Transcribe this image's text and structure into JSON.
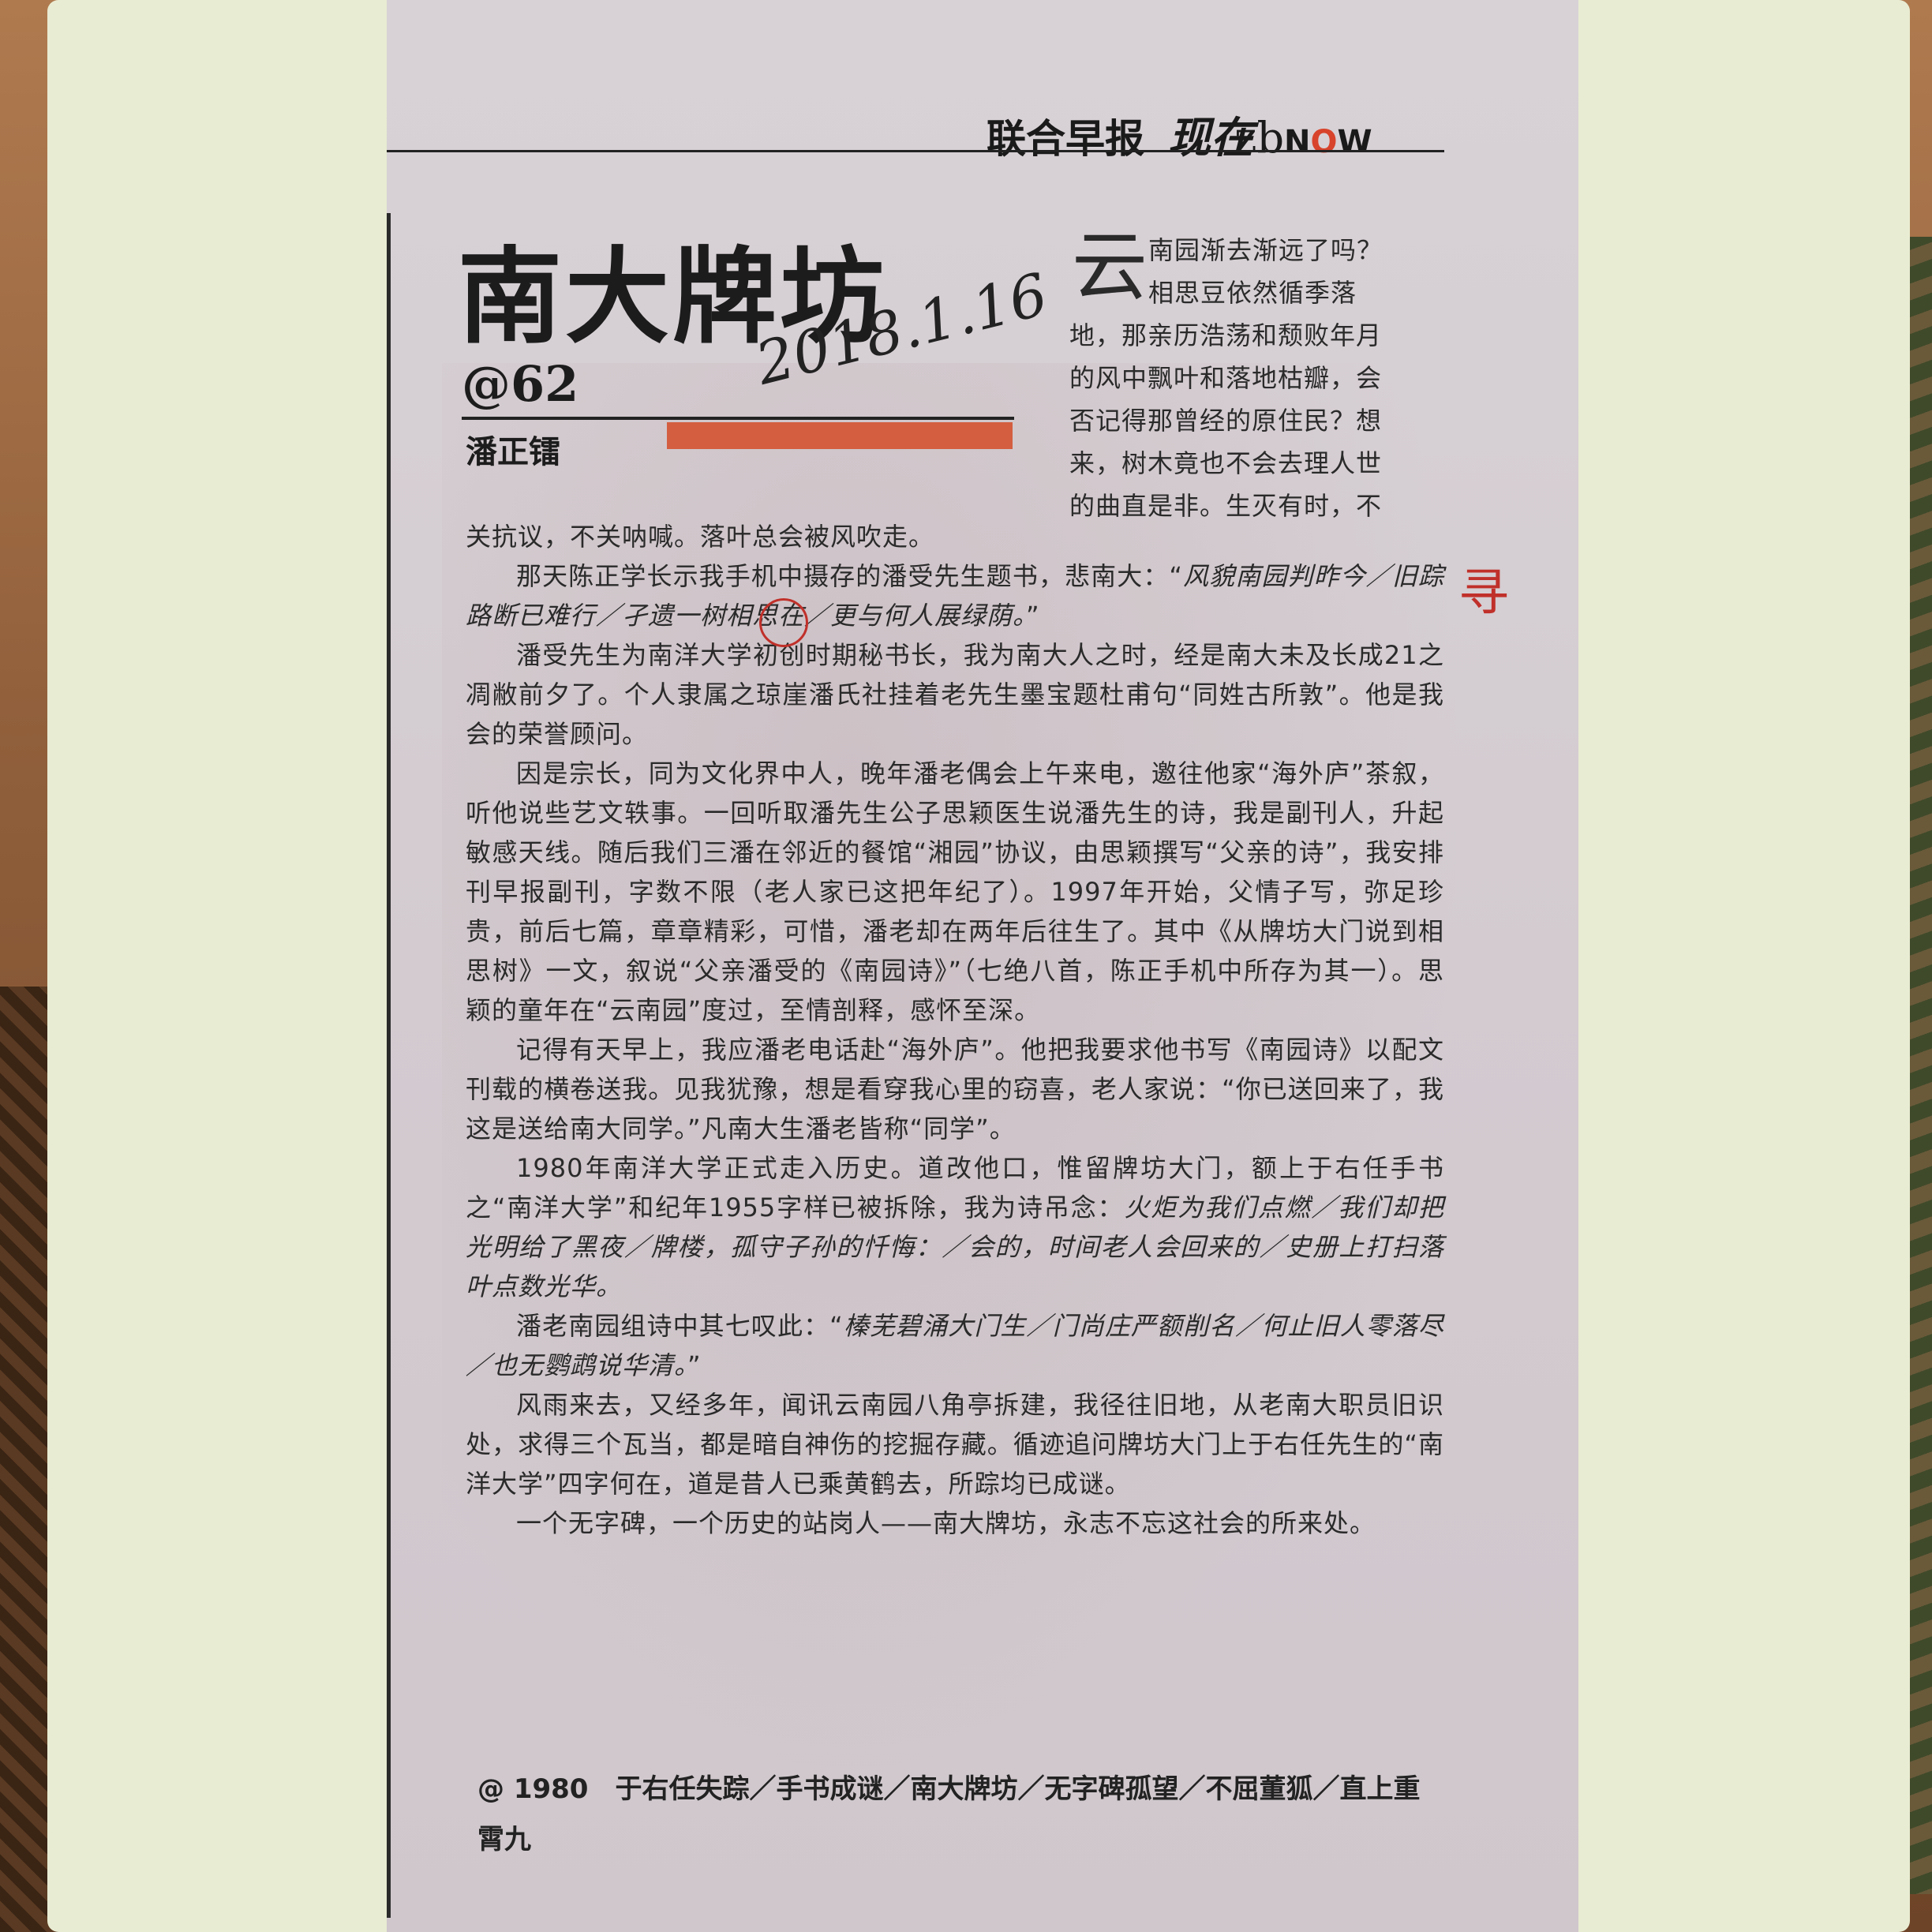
{
  "masthead": {
    "paper_name": "联合早报",
    "section_cn": "现在",
    "section_zb": "zb",
    "section_n": "N",
    "section_o": "O",
    "section_w": "W"
  },
  "article": {
    "headline": "南大牌坊",
    "column_no": "@62",
    "author": "潘正镭",
    "handwritten_date": "2018.1.16",
    "drop_cap": "云",
    "intro_lines": [
      "南园渐去渐远了吗？",
      "相思豆依然循季落",
      "地，那亲历浩荡和颓败年月",
      "的风中飘叶和落地枯瓣，会",
      "否记得那曾经的原住民？想",
      "来，树木竟也不会去理人世",
      "的曲直是非。生灭有时，不"
    ],
    "p1_cont": "关抗议，不关呐喊。落叶总会被风吹走。",
    "p2_a": "那天陈正学长示我手机中摄存的潘受先生题书，悲南大：“",
    "p2_poem": "风貌南园判昨今／旧踪路断已难行／孑遗一树相思在／更与何人展绿荫。",
    "p2_b": "”",
    "p3": "潘受先生为南洋大学初创时期秘书长，我为南大人之时，经是南大未及长成21之凋敝前夕了。个人隶属之琼崖潘氏社挂着老先生墨宝题杜甫句“同姓古所敦”。他是我会的荣誉顾问。",
    "p4": "因是宗长，同为文化界中人，晚年潘老偶会上午来电，邀往他家“海外庐”茶叙，听他说些艺文轶事。一回听取潘先生公子思颖医生说潘先生的诗，我是副刊人，升起敏感天线。随后我们三潘在邻近的餐馆“湘园”协议，由思颖撰写“父亲的诗”，我安排刊早报副刊，字数不限（老人家已这把年纪了）。1997年开始，父情子写，弥足珍贵，前后七篇，章章精彩，可惜，潘老却在两年后往生了。其中《从牌坊大门说到相思树》一文，叙说“父亲潘受的《南园诗》”（七绝八首，陈正手机中所存为其一）。思颖的童年在“云南园”度过，至情剖释，感怀至深。",
    "p5": "记得有天早上，我应潘老电话赴“海外庐”。他把我要求他书写《南园诗》以配文刊载的横卷送我。见我犹豫，想是看穿我心里的窃喜，老人家说：“你已送回来了，我这是送给南大同学。”凡南大生潘老皆称“同学”。",
    "p6_a": "1980年南洋大学正式走入历史。道改他口，惟留牌坊大门，额上于右任手书之“南洋大学”和纪年1955字样已被拆除，我为诗吊念：",
    "p6_poem": "火炬为我们点燃／我们却把光明给了黑夜／牌楼，孤守子孙的忏悔：／会的，时间老人会回来的／史册上打扫落叶点数光华。",
    "p7_a": "潘老南园组诗中其七叹此：“",
    "p7_poem": "榛芜碧涌大门生／门尚庄严额削名／何止旧人零落尽／也无鹦鹉说华清。",
    "p7_b": "”",
    "p8": "风雨来去，又经多年，闻讯云南园八角亭拆建，我径往旧地，从老南大职员旧识处，求得三个瓦当，都是暗自神伤的挖掘存藏。循迹追问牌坊大门上于右任先生的“南洋大学”四字何在，道是昔人已乘黄鹤去，所踪均已成谜。",
    "p9": "一个无字碑，一个历史的站岗人——南大牌坊，永志不忘这社会的所来处。",
    "footer": "@ 1980　于右任失踪／手书成谜／南大牌坊／无字碑孤望／不屈董狐／直上重霄九",
    "margin_note": "寻"
  }
}
